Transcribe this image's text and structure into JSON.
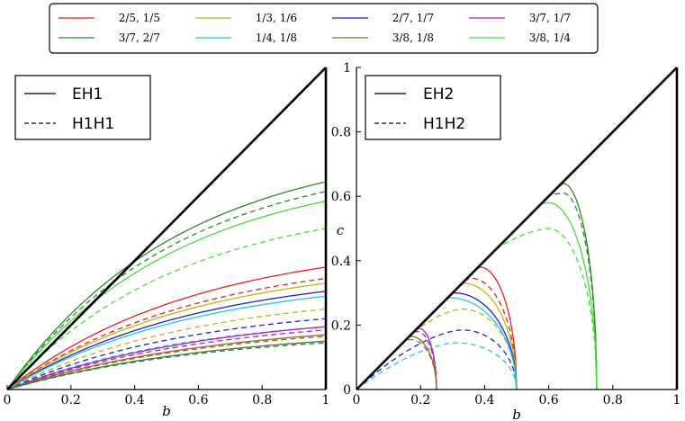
{
  "chart_data": [
    {
      "type": "line",
      "panel": "left",
      "xlabel": "b",
      "ylabel": "",
      "xlim": [
        0,
        1
      ],
      "ylim": [
        0,
        1
      ],
      "xticks": [
        "0",
        "0.2",
        "0.4",
        "0.6",
        "0.8",
        "1"
      ],
      "yticks": [],
      "style_legend": [
        {
          "label": "EH1",
          "dash": "solid"
        },
        {
          "label": "H1H1",
          "dash": "dashed"
        }
      ],
      "boundary": {
        "name": "c = b",
        "x": [
          0,
          1
        ],
        "y": [
          0,
          1
        ]
      },
      "series": [
        {
          "name": "3/7, 2/7 EH1",
          "key": "3/7, 2/7",
          "color": "#2a8a2a",
          "dash": "solid",
          "end": 0.645,
          "shape": 0.55
        },
        {
          "name": "3/7, 2/7 H1H1",
          "key": "3/7, 2/7",
          "color": "#2a8a2a",
          "dash": "dashed",
          "end": 0.615,
          "shape": 0.55
        },
        {
          "name": "3/8, 1/4 EH1",
          "key": "3/8, 1/4",
          "color": "#44dd33",
          "dash": "solid",
          "end": 0.585,
          "shape": 0.55
        },
        {
          "name": "3/8, 1/4 H1H1",
          "key": "3/8, 1/4",
          "color": "#44dd33",
          "dash": "dashed",
          "end": 0.5,
          "shape": 0.55
        },
        {
          "name": "2/5, 1/5 EH1",
          "key": "2/5, 1/5",
          "color": "#e8201c",
          "dash": "solid",
          "end": 0.38,
          "shape": 0.6
        },
        {
          "name": "2/5, 1/5 H1H1",
          "key": "2/5, 1/5",
          "color": "#e8201c",
          "dash": "dashed",
          "end": 0.345,
          "shape": 0.6
        },
        {
          "name": "1/3, 1/6 EH1",
          "key": "1/3, 1/6",
          "color": "#bcb41a",
          "dash": "solid",
          "end": 0.33,
          "shape": 0.6
        },
        {
          "name": "1/3, 1/6 H1H1",
          "key": "1/3, 1/6",
          "color": "#bcb41a",
          "dash": "dashed",
          "end": 0.25,
          "shape": 0.6
        },
        {
          "name": "2/7, 1/7 EH1",
          "key": "2/7, 1/7",
          "color": "#1f1fd0",
          "dash": "solid",
          "end": 0.305,
          "shape": 0.6
        },
        {
          "name": "2/7, 1/7 H1H1",
          "key": "2/7, 1/7",
          "color": "#1f1fd0",
          "dash": "dashed",
          "end": 0.22,
          "shape": 0.6
        },
        {
          "name": "1/4, 1/8 EH1",
          "key": "1/4, 1/8",
          "color": "#22c8d8",
          "dash": "solid",
          "end": 0.29,
          "shape": 0.6
        },
        {
          "name": "1/4, 1/8 H1H1",
          "key": "1/4, 1/8",
          "color": "#22c8d8",
          "dash": "dashed",
          "end": 0.195,
          "shape": 0.6
        },
        {
          "name": "3/7, 1/7 EH1",
          "key": "3/7, 1/7",
          "color": "#b81cb8",
          "dash": "solid",
          "end": 0.195,
          "shape": 0.65
        },
        {
          "name": "3/7, 1/7 H1H1",
          "key": "3/7, 1/7",
          "color": "#b81cb8",
          "dash": "dashed",
          "end": 0.185,
          "shape": 0.65
        },
        {
          "name": "3/8, 1/8 EH1",
          "key": "3/8, 1/8",
          "color": "#8e6a26",
          "dash": "solid",
          "end": 0.17,
          "shape": 0.65
        },
        {
          "name": "3/8, 1/8 H1H1",
          "key": "3/8, 1/8",
          "color": "#8e6a26",
          "dash": "dashed",
          "end": 0.165,
          "shape": 0.65
        },
        {
          "name": "extra EH1",
          "key": "",
          "color": "#3a7a3a",
          "dash": "solid",
          "end": 0.15,
          "shape": 0.65
        },
        {
          "name": "extra H1H1",
          "key": "",
          "color": "#3a7a3a",
          "dash": "dashed",
          "end": 0.145,
          "shape": 0.65
        }
      ]
    },
    {
      "type": "line",
      "panel": "right",
      "xlabel": "b",
      "ylabel": "c",
      "xlim": [
        0,
        1
      ],
      "ylim": [
        0,
        1
      ],
      "xticks": [
        "0",
        "0.2",
        "0.4",
        "0.6",
        "0.8",
        "1"
      ],
      "yticks": [
        "0",
        "0.2",
        "0.4",
        "0.6",
        "0.8",
        "1"
      ],
      "style_legend": [
        {
          "label": "EH2",
          "dash": "solid"
        },
        {
          "label": "H1H2",
          "dash": "dashed"
        }
      ],
      "boundary": {
        "name": "c = b",
        "x": [
          0,
          1
        ],
        "y": [
          0,
          1
        ]
      },
      "series": [
        {
          "name": "3/7, 2/7 EH2",
          "key": "3/7, 2/7",
          "color": "#2a8a2a",
          "dash": "solid",
          "x_end": 0.75,
          "peak_x": 0.645,
          "peak_y": 0.64
        },
        {
          "name": "3/7, 2/7 H1H2",
          "key": "3/7, 2/7",
          "color": "#2a8a2a",
          "dash": "dashed",
          "x_end": 0.75,
          "peak_x": 0.645,
          "peak_y": 0.61
        },
        {
          "name": "3/8, 1/4 EH2",
          "key": "3/8, 1/4",
          "color": "#44dd33",
          "dash": "solid",
          "x_end": 0.75,
          "peak_x": 0.6,
          "peak_y": 0.58
        },
        {
          "name": "3/8, 1/4 H1H2",
          "key": "3/8, 1/4",
          "color": "#44dd33",
          "dash": "dashed",
          "x_end": 0.75,
          "peak_x": 0.6,
          "peak_y": 0.5
        },
        {
          "name": "2/5, 1/5 EH2",
          "key": "2/5, 1/5",
          "color": "#e8201c",
          "dash": "solid",
          "x_end": 0.5,
          "peak_x": 0.385,
          "peak_y": 0.38
        },
        {
          "name": "2/5, 1/5 H1H2",
          "key": "2/5, 1/5",
          "color": "#e8201c",
          "dash": "dashed",
          "x_end": 0.5,
          "peak_x": 0.36,
          "peak_y": 0.345
        },
        {
          "name": "1/3, 1/6 EH2",
          "key": "1/3, 1/6",
          "color": "#bcb41a",
          "dash": "solid",
          "x_end": 0.5,
          "peak_x": 0.335,
          "peak_y": 0.33
        },
        {
          "name": "1/3, 1/6 H1H2",
          "key": "1/3, 1/6",
          "color": "#bcb41a",
          "dash": "dashed",
          "x_end": 0.5,
          "peak_x": 0.33,
          "peak_y": 0.25
        },
        {
          "name": "2/7, 1/7 EH2",
          "key": "2/7, 1/7",
          "color": "#1f1fd0",
          "dash": "solid",
          "x_end": 0.5,
          "peak_x": 0.305,
          "peak_y": 0.3
        },
        {
          "name": "2/7, 1/7 H1H2",
          "key": "2/7, 1/7",
          "color": "#1f1fd0",
          "dash": "dashed",
          "x_end": 0.5,
          "peak_x": 0.33,
          "peak_y": 0.185
        },
        {
          "name": "1/4, 1/8 EH2",
          "key": "1/4, 1/8",
          "color": "#22c8d8",
          "dash": "solid",
          "x_end": 0.5,
          "peak_x": 0.29,
          "peak_y": 0.285
        },
        {
          "name": "1/4, 1/8 H1H2",
          "key": "1/4, 1/8",
          "color": "#22c8d8",
          "dash": "dashed",
          "x_end": 0.5,
          "peak_x": 0.31,
          "peak_y": 0.145
        },
        {
          "name": "3/7, 1/7 EH2",
          "key": "3/7, 1/7",
          "color": "#b81cb8",
          "dash": "solid",
          "x_end": 0.25,
          "peak_x": 0.195,
          "peak_y": 0.19
        },
        {
          "name": "3/7, 1/7 H1H2",
          "key": "3/7, 1/7",
          "color": "#b81cb8",
          "dash": "dashed",
          "x_end": 0.25,
          "peak_x": 0.19,
          "peak_y": 0.18
        },
        {
          "name": "3/8, 1/8 EH2",
          "key": "3/8, 1/8",
          "color": "#8e6a26",
          "dash": "solid",
          "x_end": 0.25,
          "peak_x": 0.17,
          "peak_y": 0.165
        },
        {
          "name": "3/8, 1/8 H1H2",
          "key": "3/8, 1/8",
          "color": "#8e6a26",
          "dash": "dashed",
          "x_end": 0.25,
          "peak_x": 0.17,
          "peak_y": 0.155
        }
      ]
    }
  ],
  "color_legend": [
    {
      "label": "2/5, 1/5",
      "color": "#e8201c"
    },
    {
      "label": "1/3, 1/6",
      "color": "#bcb41a"
    },
    {
      "label": "2/7, 1/7",
      "color": "#1f1fd0"
    },
    {
      "label": "3/7, 1/7",
      "color": "#b81cb8"
    },
    {
      "label": "3/7, 2/7",
      "color": "#2a8a2a"
    },
    {
      "label": "1/4, 1/8",
      "color": "#22c8d8"
    },
    {
      "label": "3/8, 1/8",
      "color": "#8e6a26"
    },
    {
      "label": "3/8, 1/4",
      "color": "#44dd33"
    }
  ]
}
